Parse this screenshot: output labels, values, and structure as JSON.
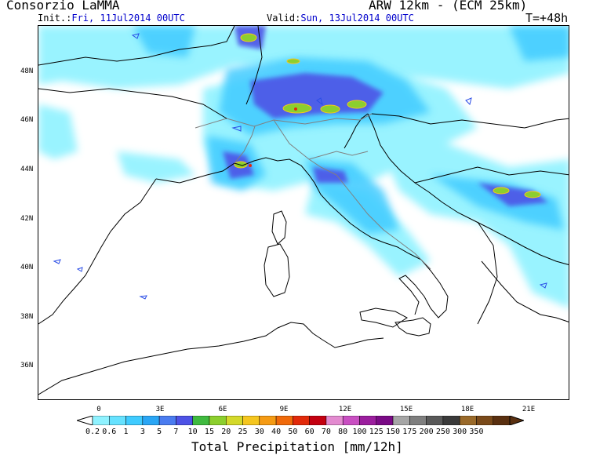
{
  "header": {
    "left_title": "Consorzio LaMMA",
    "right_title": "ARW 12km - (ECM 25km)",
    "init_prefix": "Init.:",
    "init_value": "Fri, 11Jul2014 00UTC",
    "valid_prefix": "Valid:",
    "valid_value": "Sun, 13Jul2014 00UTC",
    "forecast_hour": "T=+48h"
  },
  "map": {
    "lat_labels": [
      "48N",
      "46N",
      "44N",
      "42N",
      "40N",
      "38N",
      "36N"
    ],
    "lon_labels": [
      "0",
      "3E",
      "6E",
      "9E",
      "12E",
      "15E",
      "18E",
      "21E"
    ]
  },
  "colorbar": {
    "title": "Total Precipitation [mm/12h]",
    "unit": "mm/12h",
    "labels": [
      "0.2",
      "0.6",
      "1",
      "3",
      "5",
      "7",
      "10",
      "15",
      "20",
      "25",
      "30",
      "40",
      "50",
      "60",
      "70",
      "80",
      "100",
      "125",
      "150",
      "175",
      "200",
      "250",
      "300",
      "350"
    ],
    "colors": [
      "#8ff2ff",
      "#66e2ff",
      "#3fcbff",
      "#2aa6f5",
      "#4a7cf0",
      "#4d52e6",
      "#3fba3f",
      "#8ccf2e",
      "#d4d92a",
      "#f5c61f",
      "#f59b14",
      "#f06a0a",
      "#e22a0a",
      "#c40010",
      "#e38bd0",
      "#c94fc2",
      "#9b1e9e",
      "#7a0a86",
      "#a6a6a6",
      "#7f7f7f",
      "#595959",
      "#3a3a3a",
      "#9a6a2a",
      "#7a4a1a",
      "#5a3010"
    ]
  },
  "colors": {
    "date_text": "#0000cc",
    "coastline": "#000000",
    "border": "#808080",
    "water": "#2a4de6"
  }
}
